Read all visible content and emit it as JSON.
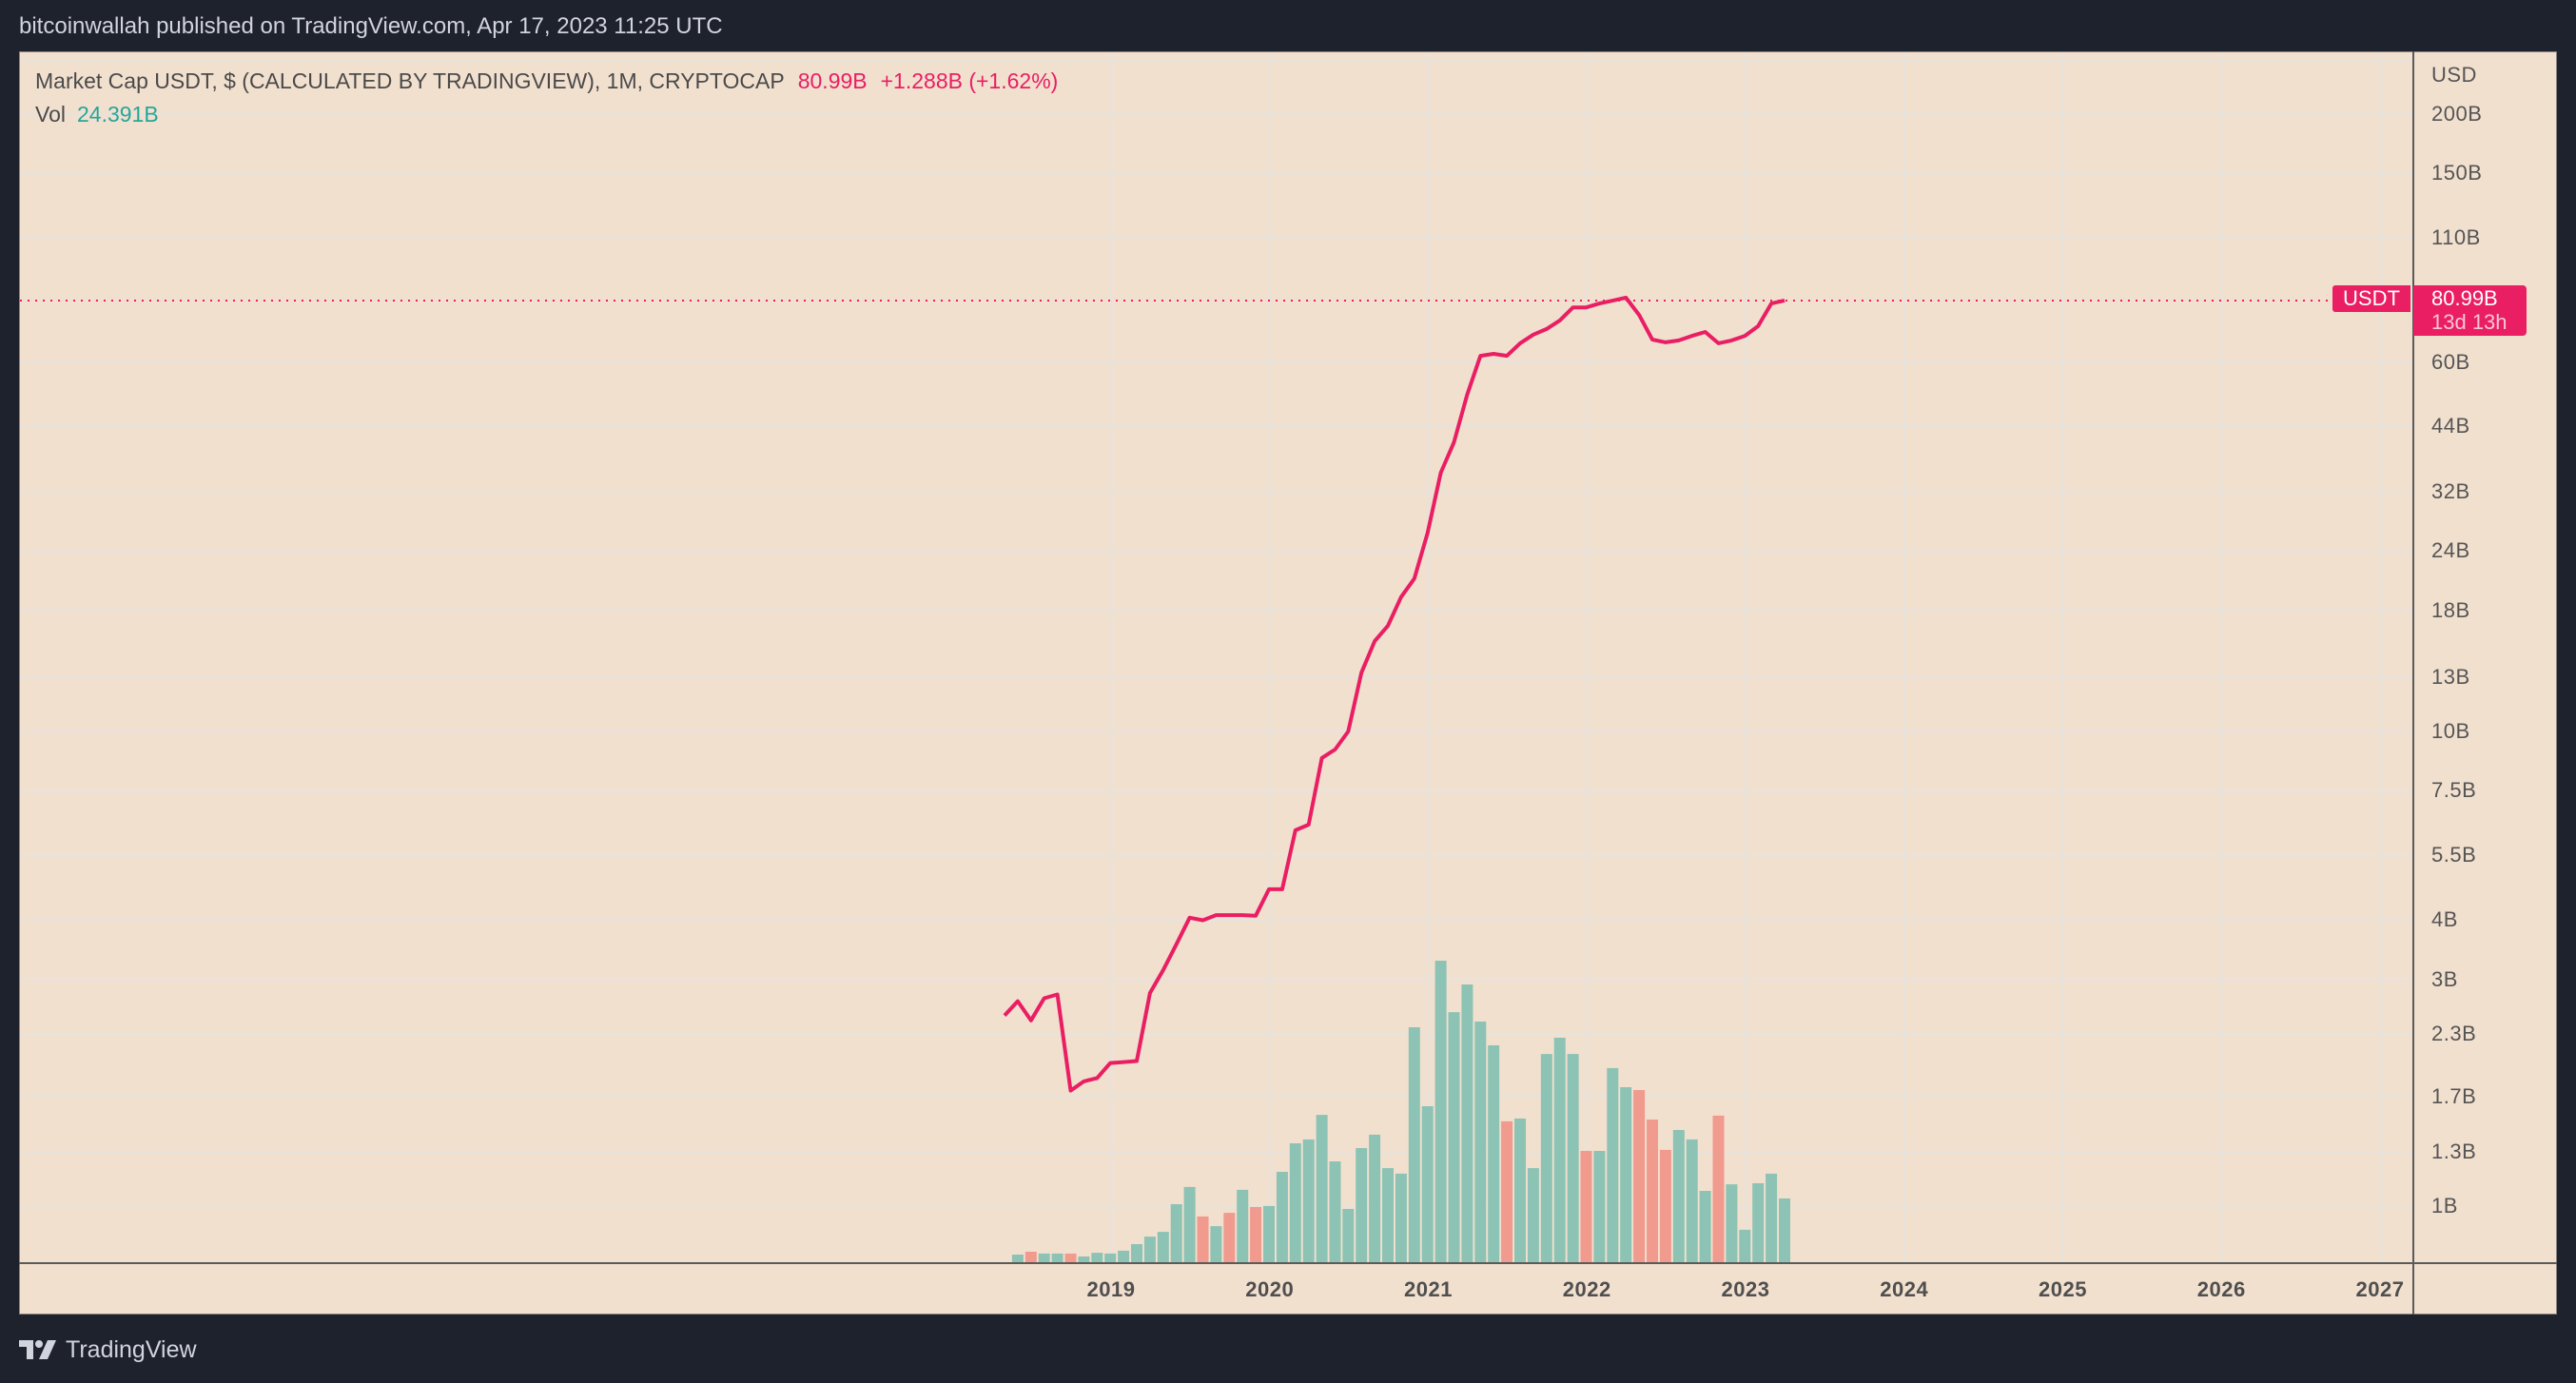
{
  "header": {
    "publisher_line": "bitcoinwallah published on TradingView.com, Apr 17, 2023 11:25 UTC"
  },
  "legend": {
    "symbol_title": "Market Cap USDT, $ (CALCULATED BY TRADINGVIEW), 1M, CRYPTOCAP",
    "last_value": "80.99B",
    "change": "+1.288B (+1.62%)",
    "vol_label": "Vol",
    "vol_value": "24.391B"
  },
  "price_axis": {
    "currency": "USD",
    "ticks": [
      "200B",
      "150B",
      "110B",
      "60B",
      "44B",
      "32B",
      "24B",
      "18B",
      "13B",
      "10B",
      "7.5B",
      "5.5B",
      "4B",
      "3B",
      "2.3B",
      "1.7B",
      "1.3B",
      "1B"
    ]
  },
  "time_axis": {
    "ticks": [
      "2019",
      "2020",
      "2021",
      "2022",
      "2023",
      "2024",
      "2025",
      "2026",
      "2027"
    ]
  },
  "last_price_tag": {
    "symbol": "USDT",
    "price": "80.99B",
    "countdown": "13d 13h"
  },
  "footer": {
    "brand": "TradingView"
  },
  "colors": {
    "line": "#E91E63",
    "volume_up": "#8CC3B4",
    "volume_down": "#F19A8E",
    "background": "#F2E0CF",
    "grid": "#E6E3DE",
    "accent_teal": "#26A69A"
  },
  "chart_data": {
    "type": "line",
    "title": "Market Cap USDT, $ (CALCULATED BY TRADINGVIEW), 1M, CRYPTOCAP",
    "xlabel": "",
    "ylabel": "USD",
    "yscale": "log",
    "ylim": [
      0.8,
      230
    ],
    "grid": true,
    "legend_position": "top-left",
    "x_start": "2018-05",
    "x_end": "2023-04",
    "interval": "1M",
    "series": [
      {
        "name": "Market Cap USDT (B)",
        "type": "line",
        "start": "2018-05",
        "values": [
          2.52,
          2.7,
          2.46,
          2.74,
          2.79,
          1.75,
          1.83,
          1.86,
          2.0,
          2.01,
          2.02,
          2.81,
          3.14,
          3.56,
          4.05,
          4.0,
          4.1,
          4.1,
          4.1,
          4.09,
          4.65,
          4.65,
          6.19,
          6.36,
          8.79,
          9.16,
          10.0,
          13.3,
          15.5,
          16.7,
          19.2,
          21.0,
          26.2,
          35.1,
          40.7,
          51.3,
          61.9,
          62.5,
          61.9,
          65.8,
          68.6,
          70.5,
          73.5,
          78.3,
          78.3,
          79.8,
          80.9,
          82.1,
          75.5,
          67.0,
          66.1,
          66.7,
          68.2,
          69.5,
          65.8,
          66.7,
          68.2,
          71.5,
          79.8,
          80.99
        ]
      },
      {
        "name": "Vol (B)",
        "type": "bar",
        "start": "2018-06",
        "values": [
          2.9,
          4.0,
          3.3,
          3.3,
          3.3,
          2.2,
          3.6,
          3.3,
          4.4,
          6.9,
          9.8,
          11.6,
          22.2,
          28.8,
          17.5,
          13.8,
          18.9,
          27.7,
          21.1,
          21.5,
          34.6,
          45.5,
          47.0,
          56.4,
          38.6,
          20.4,
          43.7,
          48.8,
          36.0,
          33.9,
          89.9,
          59.7,
          115.4,
          95.7,
          106.3,
          92.1,
          83.0,
          53.9,
          55.0,
          36.0,
          79.7,
          85.9,
          79.7,
          42.6,
          42.6,
          74.3,
          67.0,
          65.9,
          54.6,
          43.0,
          50.6,
          47.0,
          27.3,
          56.1,
          29.8,
          12.4,
          30.2,
          33.9,
          24.391
        ],
        "direction": [
          "up",
          "down",
          "up",
          "up",
          "down",
          "up",
          "up",
          "up",
          "up",
          "up",
          "up",
          "up",
          "up",
          "up",
          "down",
          "up",
          "down",
          "up",
          "down",
          "up",
          "up",
          "up",
          "up",
          "up",
          "up",
          "up",
          "up",
          "up",
          "up",
          "up",
          "up",
          "up",
          "up",
          "up",
          "up",
          "up",
          "up",
          "down",
          "up",
          "up",
          "up",
          "up",
          "up",
          "down",
          "up",
          "up",
          "up",
          "down",
          "down",
          "down",
          "up",
          "up",
          "up",
          "down",
          "up",
          "up",
          "up",
          "up",
          "up"
        ]
      }
    ],
    "annotations": [
      "Last value 80.99B",
      "Change +1.288B (+1.62%)",
      "Bar close countdown 13d 13h"
    ]
  }
}
